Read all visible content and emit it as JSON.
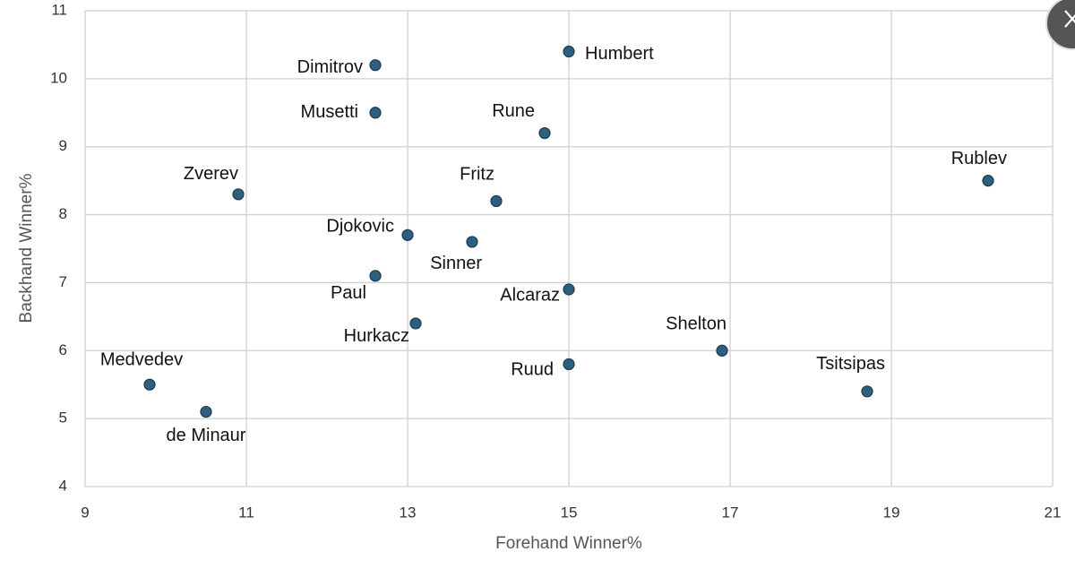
{
  "chart_data": {
    "type": "scatter",
    "x_label": "Forehand Winner%",
    "y_label": "Backhand Winner%",
    "labels": [
      "Dimitrov",
      "Humbert",
      "Musetti",
      "Rune",
      "Zverev",
      "Fritz",
      "Rublev",
      "Djokovic",
      "Sinner",
      "Paul",
      "Alcaraz",
      "Hurkacz",
      "Shelton",
      "Tsitsipas",
      "Ruud",
      "Medvedev",
      "de Minaur"
    ],
    "x": [
      12.6,
      15.0,
      12.6,
      14.7,
      10.9,
      14.1,
      20.2,
      13.0,
      13.8,
      12.6,
      15.0,
      13.1,
      16.9,
      18.7,
      15.0,
      9.8,
      10.5
    ],
    "values": [
      10.2,
      10.4,
      9.5,
      9.2,
      8.3,
      8.2,
      8.5,
      7.7,
      7.6,
      7.1,
      6.9,
      6.4,
      6.0,
      5.4,
      5.8,
      5.5,
      5.1
    ],
    "color": "#2e5f7f",
    "xlim": [
      9,
      21
    ],
    "xticks": [
      9,
      11,
      13,
      15,
      17,
      19,
      21
    ],
    "ylim": [
      4,
      11
    ],
    "yticks": [
      4,
      5,
      6,
      7,
      8,
      9,
      10,
      11
    ],
    "grid": true
  }
}
